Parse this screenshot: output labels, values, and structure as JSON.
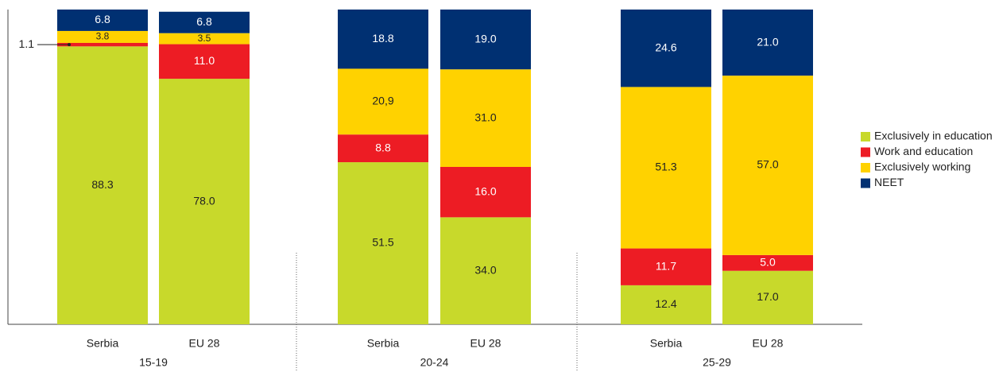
{
  "chart_data": {
    "type": "stacked-bar",
    "groups": [
      "15-19",
      "20-24",
      "25-29"
    ],
    "categories": [
      "Serbia",
      "EU 28",
      "Serbia",
      "EU 28",
      "Serbia",
      "EU 28"
    ],
    "ylim": [
      0,
      100
    ],
    "legend": "right",
    "series": [
      {
        "name": "Exclusively in education",
        "color": "#c8d92b",
        "values": [
          88.3,
          78.0,
          51.5,
          34.0,
          12.4,
          17.0
        ],
        "value_labels": [
          "88.3",
          "78.0",
          "51.5",
          "34.0",
          "12.4",
          "17.0"
        ]
      },
      {
        "name": "Work and education",
        "color": "#ed1c24",
        "values": [
          1.1,
          11.0,
          8.8,
          16.0,
          11.7,
          5.0
        ],
        "value_labels": [
          "1.1",
          "11.0",
          "8.8",
          "16.0",
          "11.7",
          "5.0"
        ]
      },
      {
        "name": "Exclusively working",
        "color": "#ffd200",
        "values": [
          3.8,
          3.5,
          20.9,
          31.0,
          51.3,
          57.0
        ],
        "value_labels": [
          "3.8",
          "3.5",
          "20,9",
          "31.0",
          "51.3",
          "57.0"
        ]
      },
      {
        "name": "NEET",
        "color": "#003072",
        "values": [
          6.8,
          6.8,
          18.8,
          19.0,
          24.6,
          21.0
        ],
        "value_labels": [
          "6.8",
          "6.8",
          "18.8",
          "19.0",
          "24.6",
          "21.0"
        ]
      }
    ]
  }
}
